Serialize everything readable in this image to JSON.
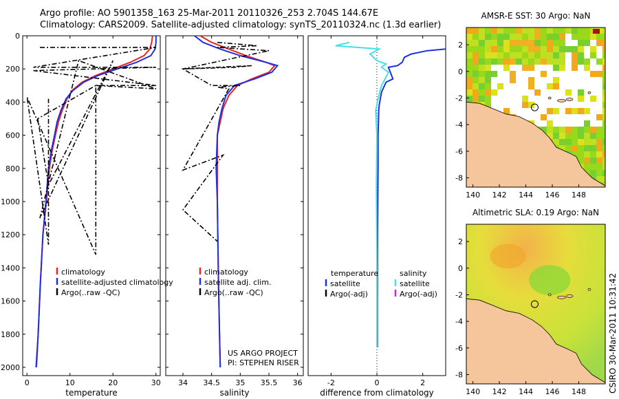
{
  "title": {
    "line1": "Argo profile: AO 5901358_163 25-Mar-2011 20110326_253 2.704S 144.67E",
    "line2": "Climatology: CARS2009. Satellite-adjusted climatology: synTS_20110324.nc (1.3d earlier)"
  },
  "colors": {
    "climatology": "#e8231e",
    "satellite": "#1f2ee0",
    "argo": "#000000",
    "salinity_satellite": "#44dfe8",
    "salinity_argo_adj": "#d81fd0",
    "land": "#f5c59b"
  },
  "stamp": "CSIRO 30-Mar-2011 10:31:42",
  "annotation": {
    "line1": "US ARGO PROJECT",
    "line2": "PI: STEPHEN RISER"
  },
  "chart_data": [
    {
      "type": "line",
      "name": "temperature",
      "xlabel": "temperature",
      "ylabel": "",
      "xlim": [
        -1,
        31
      ],
      "ylim": [
        2050,
        0
      ],
      "y_reversed": true,
      "xticks": [
        0,
        10,
        20,
        30
      ],
      "yticks": [
        0,
        200,
        400,
        600,
        800,
        1000,
        1200,
        1400,
        1600,
        1800,
        2000
      ],
      "legend": {
        "placement": "lower-right",
        "entries": [
          "climatology",
          "satellite-adjusted climatology",
          "Argo(..raw -QC)"
        ]
      },
      "series": [
        {
          "name": "climatology",
          "color": "#e8231e",
          "x": [
            29.2,
            29,
            28.6,
            27.2,
            24,
            20,
            16,
            12.8,
            10.5,
            9.3,
            8.2,
            7.3,
            6.6,
            5.8,
            5.2,
            4.5,
            3.7,
            3.1,
            2.6,
            2.2
          ],
          "y": [
            0,
            40,
            80,
            120,
            160,
            200,
            240,
            280,
            330,
            380,
            450,
            520,
            600,
            700,
            800,
            1000,
            1200,
            1500,
            1800,
            2000
          ]
        },
        {
          "name": "satellite-adjusted climatology",
          "color": "#1f2ee0",
          "x": [
            30,
            30,
            29.8,
            28.8,
            25.5,
            21,
            16.5,
            13.2,
            10.7,
            9.1,
            7.9,
            7.0,
            6.4,
            5.6,
            5.0,
            4.4,
            3.7,
            3.1,
            2.6,
            2.1
          ],
          "y": [
            0,
            40,
            80,
            120,
            160,
            200,
            240,
            280,
            330,
            380,
            450,
            520,
            600,
            700,
            800,
            1000,
            1200,
            1500,
            1800,
            2000
          ]
        },
        {
          "name": "Argo(..raw -QC)",
          "color": "#000000",
          "dashed": true,
          "x": [
            3,
            30,
            1.5,
            30,
            1.5,
            30,
            16,
            30,
            12,
            3,
            20,
            5,
            2.5,
            16,
            16,
            0,
            5,
            5
          ],
          "y": [
            70,
            70,
            190,
            190,
            210,
            300,
            300,
            320,
            150,
            1100,
            150,
            900,
            500,
            300,
            1320,
            370,
            1260,
            380
          ]
        }
      ]
    },
    {
      "type": "line",
      "name": "salinity",
      "xlabel": "salinity",
      "ylabel": "",
      "xlim": [
        33.7,
        36.1
      ],
      "ylim": [
        2050,
        0
      ],
      "y_reversed": true,
      "xticks": [
        34,
        34.5,
        35,
        35.5,
        36
      ],
      "xtick_labels": [
        "34",
        "34.5",
        "35",
        "35.5",
        "36"
      ],
      "yticks": [
        0,
        200,
        400,
        600,
        800,
        1000,
        1200,
        1400,
        1600,
        1800,
        2000
      ],
      "legend": {
        "placement": "lower-right",
        "entries": [
          "climatology",
          "satellite adj. clim.",
          "Argo(..raw -QC)"
        ]
      },
      "series": [
        {
          "name": "climatology",
          "color": "#e8231e",
          "x": [
            34.3,
            34.5,
            34.8,
            35.1,
            35.45,
            35.6,
            35.5,
            35.2,
            34.95,
            34.8,
            34.7,
            34.65,
            34.6,
            34.6,
            34.6,
            34.62,
            34.65
          ],
          "y": [
            0,
            40,
            80,
            120,
            160,
            180,
            220,
            260,
            300,
            360,
            440,
            520,
            600,
            800,
            1000,
            1500,
            2000
          ]
        },
        {
          "name": "satellite adj. clim.",
          "color": "#1f2ee0",
          "x": [
            34.2,
            34.35,
            34.65,
            35.0,
            35.45,
            35.65,
            35.55,
            35.25,
            34.9,
            34.75,
            34.68,
            34.63,
            34.6,
            34.58,
            34.6,
            34.62,
            34.65
          ],
          "y": [
            0,
            40,
            80,
            120,
            160,
            180,
            220,
            260,
            300,
            360,
            440,
            520,
            600,
            800,
            1000,
            1500,
            2000
          ]
        },
        {
          "name": "Argo(..raw -QC)",
          "color": "#000000",
          "dashed": true,
          "x": [
            34.6,
            35.3,
            34.6,
            35.5,
            34.0,
            34.9,
            35.2,
            34.0,
            34.5,
            35.0,
            34.6,
            34.8,
            34.0,
            34.7,
            34.0,
            34.6
          ],
          "y": [
            40,
            60,
            70,
            90,
            200,
            190,
            180,
            200,
            300,
            300,
            310,
            320,
            810,
            720,
            1050,
            1240
          ]
        }
      ]
    },
    {
      "type": "line",
      "name": "difference from climatology",
      "xlabel": "difference from climatology",
      "ylabel": "",
      "xlim": [
        -3,
        3
      ],
      "ylim": [
        2050,
        0
      ],
      "y_reversed": true,
      "xticks": [
        -2,
        0,
        2
      ],
      "zero_line": true,
      "legend": {
        "placement": "bottom",
        "temperature_label": "temperature",
        "salinity_label": "salinity",
        "entries_left": [
          "satellite",
          "Argo(-adj)"
        ],
        "entries_right": [
          "satellite",
          "Argo(-adj)"
        ]
      },
      "series": [
        {
          "name": "temperature satellite",
          "color": "#1f2ee0",
          "x": [
            3,
            2.2,
            1.5,
            1.2,
            1.1,
            0.9,
            0.5,
            0.7,
            0.4,
            0.3,
            0.2,
            0.15,
            0.1,
            0.08,
            0.05,
            0.05,
            0.03,
            0.02,
            0.02
          ],
          "y": [
            80,
            90,
            110,
            130,
            160,
            180,
            190,
            260,
            280,
            310,
            340,
            380,
            420,
            450,
            600,
            800,
            1200,
            1600,
            1880
          ]
        },
        {
          "name": "salinity satellite",
          "color": "#44dfe8",
          "x": [
            -1.2,
            -1.8,
            0.1,
            -0.3,
            0,
            0.4,
            0.2,
            0.5,
            0.4,
            0.2,
            0.05,
            -0.05,
            0.0,
            -0.02,
            0.0,
            0.0
          ],
          "y": [
            40,
            60,
            80,
            110,
            150,
            170,
            190,
            220,
            250,
            300,
            380,
            450,
            600,
            900,
            1400,
            1880
          ]
        }
      ]
    },
    {
      "type": "heatmap",
      "name": "sst-map",
      "title": "AMSR-E SST: 30 Argo: NaN",
      "xlim": [
        139.5,
        150
      ],
      "ylim": [
        -8.7,
        3.3
      ],
      "xticks": [
        140,
        142,
        144,
        146,
        148
      ],
      "yticks": [
        -8,
        -6,
        -4,
        -2,
        0,
        2
      ],
      "argo_position": {
        "lon": 144.67,
        "lat": -2.704
      }
    },
    {
      "type": "heatmap",
      "name": "sla-map",
      "title": "Altimetric SLA: 0.19 Argo: NaN",
      "xlim": [
        139.5,
        150
      ],
      "ylim": [
        -8.7,
        3.3
      ],
      "xticks": [
        140,
        142,
        144,
        146,
        148
      ],
      "yticks": [
        -8,
        -6,
        -4,
        -2,
        0,
        2
      ],
      "argo_position": {
        "lon": 144.67,
        "lat": -2.704
      }
    }
  ]
}
